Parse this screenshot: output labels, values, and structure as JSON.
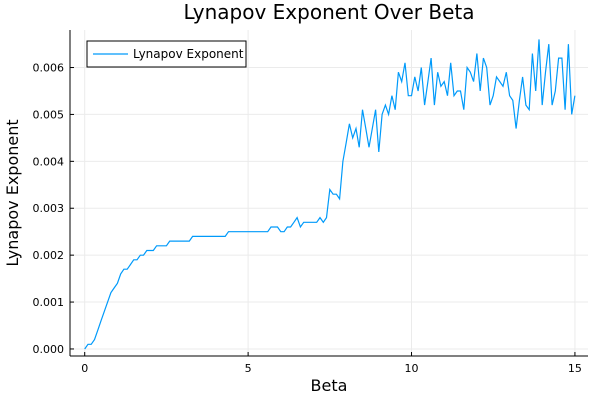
{
  "chart_data": {
    "type": "line",
    "title": "Lynapov Exponent Over Beta",
    "xlabel": "Beta",
    "ylabel": "Lynapov Exponent",
    "xlim": [
      -0.45,
      15.4
    ],
    "ylim": [
      -0.00015,
      0.0068
    ],
    "xticks": [
      0,
      5,
      10,
      15
    ],
    "xtick_labels": [
      "0",
      "5",
      "10",
      "15"
    ],
    "yticks": [
      0,
      0.001,
      0.002,
      0.003,
      0.004,
      0.005,
      0.006
    ],
    "ytick_labels": [
      "0.000",
      "0.001",
      "0.002",
      "0.003",
      "0.004",
      "0.005",
      "0.006"
    ],
    "grid": true,
    "legend_position": "top-left",
    "series": [
      {
        "name": "Lynapov Exponent",
        "color": "#009AFA",
        "x": [
          0,
          0.1,
          0.2,
          0.3,
          0.4,
          0.5,
          0.6,
          0.7,
          0.8,
          0.9,
          1,
          1.1,
          1.2,
          1.3,
          1.4,
          1.5,
          1.6,
          1.7,
          1.8,
          1.9,
          2,
          2.1,
          2.2,
          2.3,
          2.4,
          2.5,
          2.6,
          2.7,
          2.8,
          2.9,
          3,
          3.1,
          3.2,
          3.3,
          3.4,
          3.5,
          3.6,
          3.7,
          3.8,
          3.9,
          4,
          4.1,
          4.2,
          4.3,
          4.4,
          4.5,
          4.6,
          4.7,
          4.8,
          4.9,
          5,
          5.1,
          5.2,
          5.3,
          5.4,
          5.5,
          5.6,
          5.7,
          5.8,
          5.9,
          6,
          6.1,
          6.2,
          6.3,
          6.4,
          6.5,
          6.6,
          6.7,
          6.8,
          6.9,
          7,
          7.1,
          7.2,
          7.3,
          7.4,
          7.5,
          7.6,
          7.7,
          7.8,
          7.9,
          8,
          8.1,
          8.2,
          8.3,
          8.4,
          8.5,
          8.6,
          8.7,
          8.8,
          8.9,
          9,
          9.1,
          9.2,
          9.3,
          9.4,
          9.5,
          9.6,
          9.7,
          9.8,
          9.9,
          10,
          10.1,
          10.2,
          10.3,
          10.4,
          10.5,
          10.6,
          10.7,
          10.8,
          10.9,
          11,
          11.1,
          11.2,
          11.3,
          11.4,
          11.5,
          11.6,
          11.7,
          11.8,
          11.9,
          12,
          12.1,
          12.2,
          12.3,
          12.4,
          12.5,
          12.6,
          12.7,
          12.8,
          12.9,
          13,
          13.1,
          13.2,
          13.3,
          13.4,
          13.5,
          13.6,
          13.7,
          13.8,
          13.9,
          14,
          14.1,
          14.2,
          14.3,
          14.4,
          14.5,
          14.6,
          14.7,
          14.8,
          14.9,
          15
        ],
        "y": [
          0,
          0.0001,
          0.0001,
          0.0002,
          0.0004,
          0.0006,
          0.0008,
          0.001,
          0.0012,
          0.0013,
          0.0014,
          0.0016,
          0.0017,
          0.0017,
          0.0018,
          0.0019,
          0.0019,
          0.002,
          0.002,
          0.0021,
          0.0021,
          0.0021,
          0.0022,
          0.0022,
          0.0022,
          0.0022,
          0.0023,
          0.0023,
          0.0023,
          0.0023,
          0.0023,
          0.0023,
          0.0023,
          0.0024,
          0.0024,
          0.0024,
          0.0024,
          0.0024,
          0.0024,
          0.0024,
          0.0024,
          0.0024,
          0.0024,
          0.0024,
          0.0025,
          0.0025,
          0.0025,
          0.0025,
          0.0025,
          0.0025,
          0.0025,
          0.0025,
          0.0025,
          0.0025,
          0.0025,
          0.0025,
          0.0025,
          0.0026,
          0.0026,
          0.0026,
          0.0025,
          0.0025,
          0.0026,
          0.0026,
          0.0027,
          0.0028,
          0.0026,
          0.0027,
          0.0027,
          0.0027,
          0.0027,
          0.0027,
          0.0028,
          0.0027,
          0.0028,
          0.0034,
          0.0033,
          0.0033,
          0.0032,
          0.004,
          0.0044,
          0.0048,
          0.0045,
          0.0047,
          0.0043,
          0.0051,
          0.0047,
          0.0043,
          0.0047,
          0.0051,
          0.0042,
          0.005,
          0.0052,
          0.005,
          0.0054,
          0.0051,
          0.0059,
          0.0057,
          0.0061,
          0.0054,
          0.0054,
          0.0058,
          0.0055,
          0.006,
          0.0052,
          0.0057,
          0.0062,
          0.0052,
          0.0059,
          0.0056,
          0.0057,
          0.0054,
          0.0061,
          0.0054,
          0.0055,
          0.0055,
          0.0051,
          0.006,
          0.0059,
          0.0057,
          0.0063,
          0.0055,
          0.0062,
          0.006,
          0.0052,
          0.0054,
          0.0058,
          0.0057,
          0.0056,
          0.0059,
          0.0054,
          0.0053,
          0.0047,
          0.0053,
          0.0058,
          0.0052,
          0.0051,
          0.0063,
          0.0055,
          0.0066,
          0.0052,
          0.0059,
          0.0065,
          0.0052,
          0.0055,
          0.0062,
          0.0062,
          0.0051,
          0.0065,
          0.005,
          0.0054
        ]
      }
    ]
  }
}
